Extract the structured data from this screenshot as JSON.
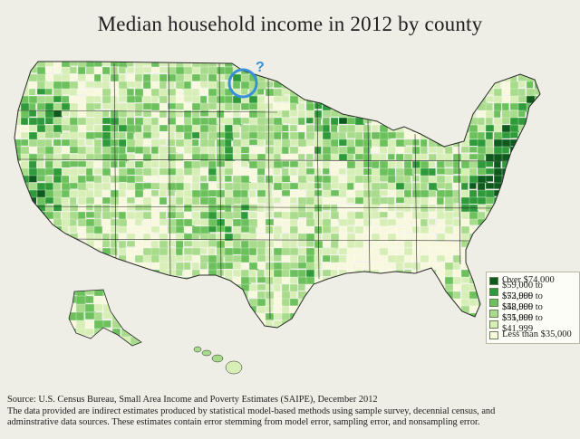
{
  "title": "Median household income in 2012 by county",
  "question_mark": "?",
  "legend": {
    "items": [
      {
        "label": "Over $74,000",
        "color": "#0d5a1c"
      },
      {
        "label": "$59,000 to $73,999",
        "color": "#2f9a3a"
      },
      {
        "label": "$52,000 to $58,999",
        "color": "#6dc15d"
      },
      {
        "label": "$42,000 to $51,999",
        "color": "#a8db8b"
      },
      {
        "label": "$35,000 to $41,999",
        "color": "#d7eeb6"
      },
      {
        "label": "Less than $35,000",
        "color": "#f8f8de"
      }
    ]
  },
  "source": {
    "line1": "Source: U.S. Census Bureau, Small Area Income and Poverty Estimates (SAIPE), December 2012",
    "line2": "The data provided are indirect estimates produced by statistical model-based methods using sample survey, decennial census, and",
    "line3": "adminstrative data sources. These estimates contain error stemming from model error, sampling error, and nonsampling error."
  },
  "colors": {
    "highlight_circle": "#3b8fd6",
    "county_border": "#ffffff",
    "state_border": "#2a2a2a"
  }
}
